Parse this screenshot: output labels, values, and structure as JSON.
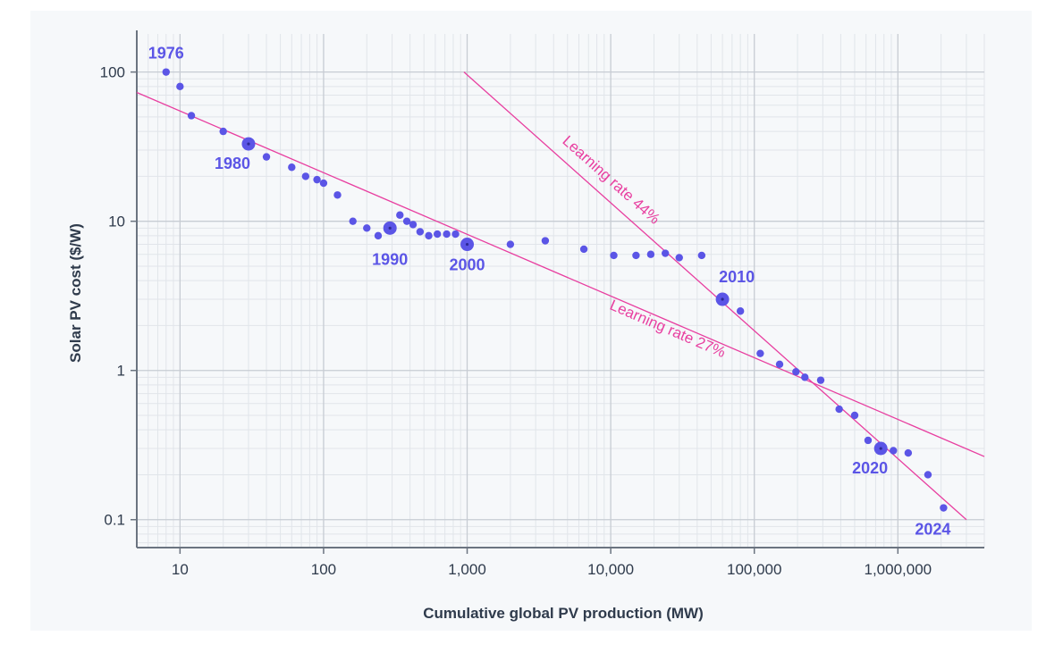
{
  "chart_data": {
    "type": "scatter",
    "xscale": "log",
    "yscale": "log",
    "xlim": [
      5,
      4000000
    ],
    "ylim": [
      0.065,
      180
    ],
    "grid": true,
    "xlabel": "Cumulative global PV production (MW)",
    "ylabel": "Solar PV cost ($/W)",
    "xticks": [
      {
        "value": 10,
        "label": "10"
      },
      {
        "value": 100,
        "label": "100"
      },
      {
        "value": 1000,
        "label": "1,000"
      },
      {
        "value": 10000,
        "label": "10,000"
      },
      {
        "value": 100000,
        "label": "100,000"
      },
      {
        "value": 1000000,
        "label": "1,000,000"
      }
    ],
    "yticks": [
      {
        "value": 0.1,
        "label": "0.1"
      },
      {
        "value": 1,
        "label": "1"
      },
      {
        "value": 10,
        "label": "10"
      },
      {
        "value": 100,
        "label": "100"
      }
    ],
    "points": [
      {
        "x": 8,
        "y": 100
      },
      {
        "x": 10,
        "y": 80
      },
      {
        "x": 12,
        "y": 51
      },
      {
        "x": 20,
        "y": 40
      },
      {
        "x": 30,
        "y": 33,
        "highlight": true
      },
      {
        "x": 40,
        "y": 27
      },
      {
        "x": 60,
        "y": 23
      },
      {
        "x": 75,
        "y": 20
      },
      {
        "x": 90,
        "y": 19
      },
      {
        "x": 100,
        "y": 18
      },
      {
        "x": 125,
        "y": 15
      },
      {
        "x": 160,
        "y": 10
      },
      {
        "x": 200,
        "y": 9
      },
      {
        "x": 240,
        "y": 8
      },
      {
        "x": 290,
        "y": 9,
        "highlight": true
      },
      {
        "x": 340,
        "y": 11
      },
      {
        "x": 380,
        "y": 10
      },
      {
        "x": 420,
        "y": 9.5
      },
      {
        "x": 470,
        "y": 8.5
      },
      {
        "x": 540,
        "y": 8
      },
      {
        "x": 620,
        "y": 8.2
      },
      {
        "x": 720,
        "y": 8.2
      },
      {
        "x": 830,
        "y": 8.2
      },
      {
        "x": 1000,
        "y": 7,
        "highlight": true
      },
      {
        "x": 2000,
        "y": 7
      },
      {
        "x": 3500,
        "y": 7.4
      },
      {
        "x": 6500,
        "y": 6.5
      },
      {
        "x": 10500,
        "y": 5.9
      },
      {
        "x": 15000,
        "y": 5.9
      },
      {
        "x": 19000,
        "y": 6
      },
      {
        "x": 24000,
        "y": 6.1
      },
      {
        "x": 30000,
        "y": 5.7
      },
      {
        "x": 43000,
        "y": 5.9
      },
      {
        "x": 60000,
        "y": 3,
        "highlight": true
      },
      {
        "x": 80000,
        "y": 2.5
      },
      {
        "x": 110000,
        "y": 1.3
      },
      {
        "x": 150000,
        "y": 1.1
      },
      {
        "x": 195000,
        "y": 0.98
      },
      {
        "x": 225000,
        "y": 0.9
      },
      {
        "x": 290000,
        "y": 0.86
      },
      {
        "x": 390000,
        "y": 0.55
      },
      {
        "x": 500000,
        "y": 0.5
      },
      {
        "x": 620000,
        "y": 0.34
      },
      {
        "x": 760000,
        "y": 0.3,
        "highlight": true
      },
      {
        "x": 930000,
        "y": 0.29
      },
      {
        "x": 1180000,
        "y": 0.28
      },
      {
        "x": 1620000,
        "y": 0.2
      },
      {
        "x": 2080000,
        "y": 0.12
      }
    ],
    "year_labels": [
      {
        "text": "1976",
        "x": 8,
        "y": 100
      },
      {
        "text": "1980",
        "x": 30,
        "y": 33
      },
      {
        "text": "1990",
        "x": 290,
        "y": 9
      },
      {
        "text": "2000",
        "x": 1000,
        "y": 7
      },
      {
        "text": "2010",
        "x": 60000,
        "y": 3
      },
      {
        "text": "2020",
        "x": 760000,
        "y": 0.3
      },
      {
        "text": "2024",
        "x": 2080000,
        "y": 0.12
      }
    ],
    "trend_lines": [
      {
        "label": "Learning rate 27%",
        "from": {
          "x": 5,
          "y": 73
        },
        "to": {
          "x": 4000000,
          "y": 0.265
        }
      },
      {
        "label": "Learning rate 44%",
        "from": {
          "x": 950,
          "y": 100
        },
        "to": {
          "x": 3000000,
          "y": 0.1
        }
      }
    ],
    "colors": {
      "points": "#5b55e6",
      "year_labels": "#5b55e6",
      "trend": "#e83fa0",
      "grid_major": "#c7ccd3",
      "grid_minor": "#e1e5ea",
      "axis": "#6b7480",
      "text": "#2f3b4c",
      "background": "#f6f8fa"
    }
  }
}
